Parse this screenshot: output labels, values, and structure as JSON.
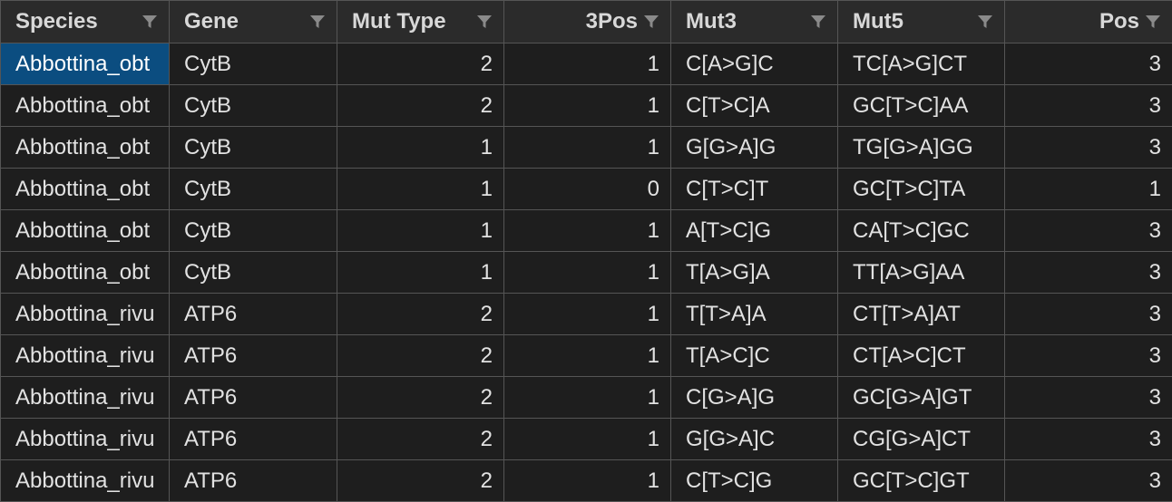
{
  "columns": [
    {
      "label": "Species",
      "icon": "filter-icon",
      "align": "left"
    },
    {
      "label": "Gene",
      "icon": "filter-icon",
      "align": "left"
    },
    {
      "label": "Mut Type",
      "icon": "filter-icon",
      "align": "left"
    },
    {
      "label": "3Pos",
      "icon": "filter-icon",
      "align": "right"
    },
    {
      "label": "Mut3",
      "icon": "filter-icon",
      "align": "left"
    },
    {
      "label": "Mut5",
      "icon": "filter-icon",
      "align": "left"
    },
    {
      "label": "Pos",
      "icon": "filter-icon",
      "align": "right"
    }
  ],
  "rows": [
    [
      "Abbottina_obt",
      "CytB",
      "2",
      "1",
      "C[A>G]C",
      "TC[A>G]CT",
      "3"
    ],
    [
      "Abbottina_obt",
      "CytB",
      "2",
      "1",
      "C[T>C]A",
      "GC[T>C]AA",
      "3"
    ],
    [
      "Abbottina_obt",
      "CytB",
      "1",
      "1",
      "G[G>A]G",
      "TG[G>A]GG",
      "3"
    ],
    [
      "Abbottina_obt",
      "CytB",
      "1",
      "0",
      "C[T>C]T",
      "GC[T>C]TA",
      "1"
    ],
    [
      "Abbottina_obt",
      "CytB",
      "1",
      "1",
      "A[T>C]G",
      "CA[T>C]GC",
      "3"
    ],
    [
      "Abbottina_obt",
      "CytB",
      "1",
      "1",
      "T[A>G]A",
      "TT[A>G]AA",
      "3"
    ],
    [
      "Abbottina_rivu",
      "ATP6",
      "2",
      "1",
      "T[T>A]A",
      "CT[T>A]AT",
      "3"
    ],
    [
      "Abbottina_rivu",
      "ATP6",
      "2",
      "1",
      "T[A>C]C",
      "CT[A>C]CT",
      "3"
    ],
    [
      "Abbottina_rivu",
      "ATP6",
      "2",
      "1",
      "C[G>A]G",
      "GC[G>A]GT",
      "3"
    ],
    [
      "Abbottina_rivu",
      "ATP6",
      "2",
      "1",
      "G[G>A]C",
      "CG[G>A]CT",
      "3"
    ],
    [
      "Abbottina_rivu",
      "ATP6",
      "2",
      "1",
      "C[T>C]G",
      "GC[T>C]GT",
      "3"
    ]
  ],
  "selected_cell": {
    "row": 0,
    "col": 0
  },
  "colors": {
    "background": "#1e1e1e",
    "header_background": "#2b2b2b",
    "grid_line": "#555555",
    "selection": "#0b4d80",
    "text": "#e2e2e2"
  }
}
